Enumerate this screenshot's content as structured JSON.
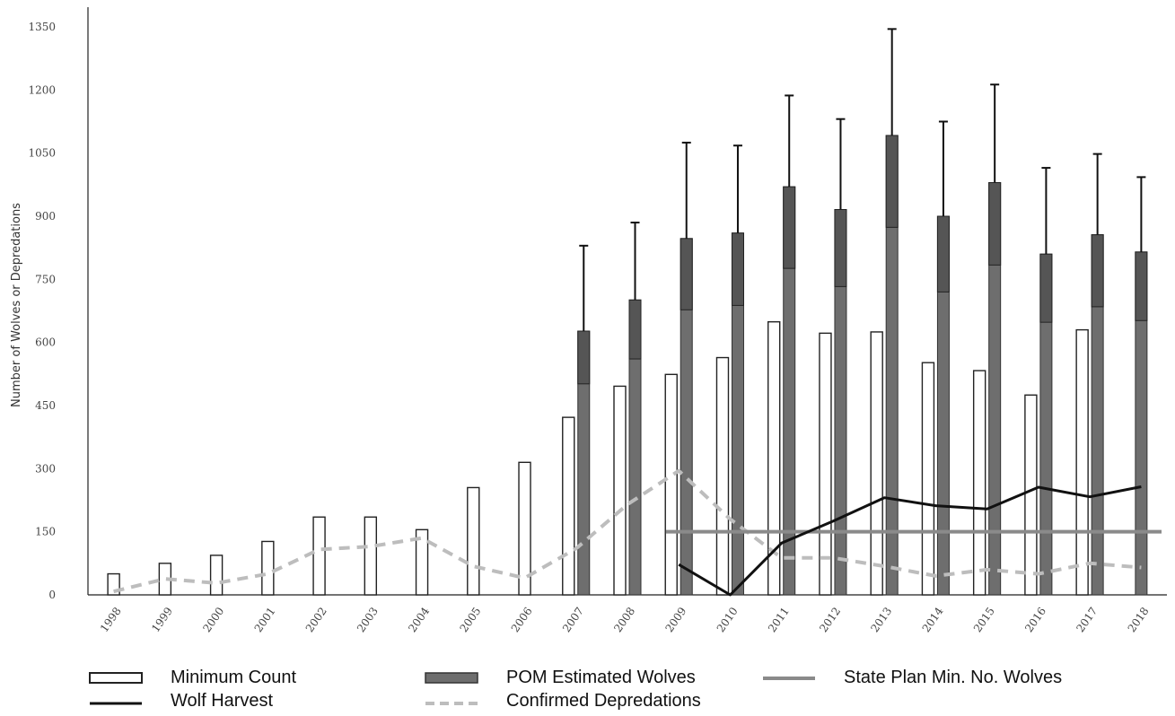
{
  "chart_data": {
    "type": "bar",
    "ylabel": "Number of Wolves or Depredations",
    "xlabel": "",
    "ylim": [
      0,
      1350
    ],
    "yticks": [
      "0",
      "150",
      "300",
      "450",
      "600",
      "750",
      "900",
      "1050",
      "1200",
      "1350"
    ],
    "categories": [
      "1998",
      "1999",
      "2000",
      "2001",
      "2002",
      "2003",
      "2004",
      "2005",
      "2006",
      "2007",
      "2008",
      "2009",
      "2010",
      "2011",
      "2012",
      "2013",
      "2014",
      "2015",
      "2016",
      "2017",
      "2018"
    ],
    "series": [
      {
        "name": "Minimum Count",
        "type": "bar",
        "values": [
          50,
          75,
          94,
          127,
          185,
          185,
          155,
          255,
          315,
          422,
          496,
          524,
          564,
          649,
          622,
          625,
          552,
          533,
          475,
          630,
          null
        ]
      },
      {
        "name": "POM Estimated Wolves",
        "type": "bar",
        "values": [
          null,
          null,
          null,
          null,
          null,
          null,
          null,
          null,
          null,
          627,
          701,
          847,
          860,
          970,
          916,
          1092,
          900,
          980,
          810,
          856,
          815
        ],
        "upper_error": [
          null,
          null,
          null,
          null,
          null,
          null,
          null,
          null,
          null,
          830,
          885,
          1075,
          1068,
          1187,
          1131,
          1345,
          1125,
          1213,
          1015,
          1048,
          993
        ]
      },
      {
        "name": "Wolf Harvest",
        "type": "line",
        "values": [
          null,
          null,
          null,
          null,
          null,
          null,
          null,
          null,
          null,
          null,
          null,
          72,
          0,
          123,
          175,
          231,
          212,
          204,
          256,
          233,
          257
        ]
      },
      {
        "name": "Confirmed Depredations",
        "type": "line",
        "values": [
          8,
          38,
          28,
          50,
          108,
          115,
          135,
          68,
          40,
          110,
          215,
          295,
          180,
          88,
          88,
          68,
          45,
          60,
          50,
          75,
          65
        ]
      },
      {
        "name": "State Plan Min. No. Wolves",
        "type": "line",
        "values": [
          null,
          null,
          null,
          null,
          null,
          null,
          null,
          null,
          null,
          null,
          null,
          150,
          150,
          150,
          150,
          150,
          150,
          150,
          150,
          150,
          150
        ]
      }
    ],
    "grid": false,
    "legend_position": "bottom"
  },
  "legend": [
    {
      "label": "Minimum Count"
    },
    {
      "label": "POM Estimated Wolves"
    },
    {
      "label": "State Plan Min. No. Wolves"
    },
    {
      "label": "Wolf Harvest"
    },
    {
      "label": "Confirmed Depredations"
    }
  ],
  "colors": {
    "minimum_count_fill": "#ffffff",
    "minimum_count_stroke": "#222222",
    "pom_fill": "#6e6e6e",
    "pom_top": "#555555",
    "error_bar": "#111111",
    "wolf_harvest": "#111111",
    "depredations": "#bdbdbd",
    "state_plan": "#8a8a8a",
    "axis": "#222222"
  }
}
